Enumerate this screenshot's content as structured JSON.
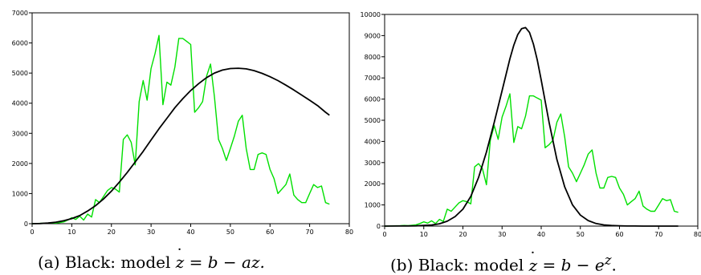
{
  "captions": {
    "a": {
      "prefix": "(a) Black: model ",
      "var": "z",
      "eq": " = b − az."
    },
    "b": {
      "prefix": "(b) Black: model ",
      "var": "z",
      "eq": " = b − e",
      "sup": "z",
      "end": "."
    }
  },
  "chart_data": [
    {
      "type": "line",
      "title": "",
      "xlabel": "",
      "ylabel": "",
      "xlim": [
        0,
        80
      ],
      "ylim": [
        0,
        7000
      ],
      "xticks": [
        0,
        10,
        20,
        30,
        40,
        50,
        60,
        70,
        80
      ],
      "yticks": [
        0,
        1000,
        2000,
        3000,
        4000,
        5000,
        6000,
        7000
      ],
      "grid": false,
      "series": [
        {
          "color": "#00e000",
          "x": [
            0,
            1,
            2,
            3,
            4,
            5,
            6,
            7,
            8,
            9,
            10,
            11,
            12,
            13,
            14,
            15,
            16,
            17,
            18,
            19,
            20,
            21,
            22,
            23,
            24,
            25,
            26,
            27,
            28,
            29,
            30,
            31,
            32,
            33,
            34,
            35,
            36,
            37,
            38,
            39,
            40,
            41,
            42,
            43,
            44,
            45,
            46,
            47,
            48,
            49,
            50,
            51,
            52,
            53,
            54,
            55,
            56,
            57,
            58,
            59,
            60,
            61,
            62,
            63,
            64,
            65,
            66,
            67,
            68,
            69,
            70,
            71,
            72,
            73,
            74,
            75
          ],
          "y": [
            0,
            5,
            10,
            15,
            20,
            30,
            20,
            40,
            60,
            120,
            200,
            140,
            250,
            120,
            320,
            220,
            800,
            700,
            900,
            1100,
            1200,
            1150,
            1050,
            2800,
            2950,
            2700,
            1950,
            4050,
            4750,
            4100,
            5150,
            5650,
            6250,
            3950,
            4700,
            4600,
            5200,
            6150,
            6150,
            6050,
            5950,
            3700,
            3850,
            4050,
            4900,
            5300,
            4200,
            2800,
            2500,
            2100,
            2500,
            2900,
            3400,
            3600,
            2500,
            1800,
            1800,
            2300,
            2350,
            2300,
            1800,
            1500,
            1000,
            1150,
            1300,
            1650,
            950,
            800,
            700,
            700,
            1000,
            1300,
            1200,
            1250,
            700,
            650
          ]
        },
        {
          "color": "#000000",
          "x": [
            0,
            2,
            4,
            6,
            8,
            10,
            12,
            14,
            16,
            18,
            20,
            22,
            24,
            26,
            28,
            30,
            32,
            34,
            36,
            38,
            40,
            42,
            44,
            46,
            48,
            50,
            52,
            54,
            56,
            58,
            60,
            62,
            64,
            66,
            68,
            70,
            72,
            74,
            75
          ],
          "y": [
            0,
            5,
            20,
            50,
            100,
            170,
            270,
            420,
            600,
            820,
            1080,
            1380,
            1700,
            2050,
            2400,
            2780,
            3150,
            3500,
            3850,
            4150,
            4420,
            4650,
            4850,
            5000,
            5100,
            5150,
            5160,
            5140,
            5080,
            4990,
            4880,
            4750,
            4600,
            4440,
            4270,
            4100,
            3920,
            3700,
            3600
          ]
        }
      ]
    },
    {
      "type": "line",
      "title": "",
      "xlabel": "",
      "ylabel": "",
      "xlim": [
        0,
        80
      ],
      "ylim": [
        0,
        10000
      ],
      "xticks": [
        0,
        10,
        20,
        30,
        40,
        50,
        60,
        70,
        80
      ],
      "yticks": [
        0,
        1000,
        2000,
        3000,
        4000,
        5000,
        6000,
        7000,
        8000,
        9000,
        10000
      ],
      "grid": false,
      "series": [
        {
          "color": "#00e000",
          "x": [
            0,
            1,
            2,
            3,
            4,
            5,
            6,
            7,
            8,
            9,
            10,
            11,
            12,
            13,
            14,
            15,
            16,
            17,
            18,
            19,
            20,
            21,
            22,
            23,
            24,
            25,
            26,
            27,
            28,
            29,
            30,
            31,
            32,
            33,
            34,
            35,
            36,
            37,
            38,
            39,
            40,
            41,
            42,
            43,
            44,
            45,
            46,
            47,
            48,
            49,
            50,
            51,
            52,
            53,
            54,
            55,
            56,
            57,
            58,
            59,
            60,
            61,
            62,
            63,
            64,
            65,
            66,
            67,
            68,
            69,
            70,
            71,
            72,
            73,
            74,
            75
          ],
          "y": [
            0,
            5,
            10,
            15,
            20,
            30,
            20,
            40,
            60,
            120,
            200,
            140,
            250,
            120,
            320,
            220,
            800,
            700,
            900,
            1100,
            1200,
            1150,
            1050,
            2800,
            2950,
            2700,
            1950,
            4050,
            4750,
            4100,
            5150,
            5650,
            6250,
            3950,
            4700,
            4600,
            5200,
            6150,
            6150,
            6050,
            5950,
            3700,
            3850,
            4050,
            4900,
            5300,
            4200,
            2800,
            2500,
            2100,
            2500,
            2900,
            3400,
            3600,
            2500,
            1800,
            1800,
            2300,
            2350,
            2300,
            1800,
            1500,
            1000,
            1150,
            1300,
            1650,
            950,
            800,
            700,
            700,
            1000,
            1300,
            1200,
            1250,
            700,
            650
          ]
        },
        {
          "color": "#000000",
          "x": [
            0,
            4,
            8,
            12,
            14,
            16,
            18,
            20,
            22,
            24,
            26,
            28,
            30,
            32,
            33,
            34,
            35,
            36,
            37,
            38,
            39,
            40,
            42,
            44,
            46,
            48,
            50,
            52,
            54,
            56,
            58,
            60,
            62,
            64,
            66,
            68,
            70,
            72,
            75
          ],
          "y": [
            0,
            2,
            10,
            50,
            110,
            230,
            450,
            800,
            1400,
            2300,
            3500,
            4900,
            6400,
            7900,
            8550,
            9050,
            9330,
            9380,
            9150,
            8600,
            7850,
            6900,
            4900,
            3150,
            1850,
            1000,
            520,
            260,
            120,
            55,
            25,
            10,
            5,
            2,
            1,
            0,
            0,
            0,
            0
          ]
        }
      ]
    }
  ]
}
